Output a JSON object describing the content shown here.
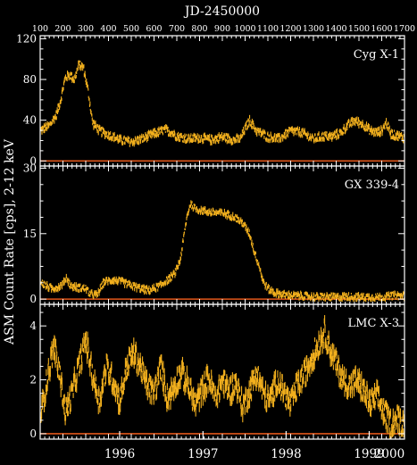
{
  "colors": {
    "background": "#000000",
    "axes": "#ffffff",
    "data": "#f2b01e",
    "zero_line": "#e0561a"
  },
  "chart_data": {
    "type": "scatter",
    "title": "JD-2450000",
    "ylabel": "ASM Count Rate [cps], 2-12 keV",
    "x_top": {
      "label": "JD-2450000",
      "range": [
        100,
        1700
      ],
      "ticks": [
        100,
        200,
        300,
        400,
        500,
        600,
        700,
        800,
        900,
        1000,
        1100,
        1200,
        1300,
        1400,
        1500,
        1600,
        1700
      ]
    },
    "x_bottom": {
      "ticks": [
        {
          "label": "1996",
          "jd": 449
        },
        {
          "label": "1997",
          "jd": 815
        },
        {
          "label": "1998",
          "jd": 1180
        },
        {
          "label": "1999",
          "jd": 1545
        },
        {
          "label": "2000",
          "jd": 1910
        }
      ]
    },
    "panels": [
      {
        "name": "Cyg X-1",
        "ylim": [
          -5,
          123
        ],
        "yticks": [
          0,
          40,
          80,
          120
        ],
        "zero_line": true,
        "profile": [
          [
            100,
            30
          ],
          [
            140,
            35
          ],
          [
            170,
            45
          ],
          [
            190,
            60
          ],
          [
            210,
            82
          ],
          [
            230,
            85
          ],
          [
            250,
            80
          ],
          [
            270,
            95
          ],
          [
            290,
            92
          ],
          [
            310,
            70
          ],
          [
            330,
            38
          ],
          [
            360,
            30
          ],
          [
            400,
            26
          ],
          [
            450,
            21
          ],
          [
            500,
            19
          ],
          [
            550,
            22
          ],
          [
            600,
            27
          ],
          [
            650,
            31
          ],
          [
            680,
            28
          ],
          [
            700,
            25
          ],
          [
            750,
            22
          ],
          [
            800,
            23
          ],
          [
            850,
            21
          ],
          [
            900,
            24
          ],
          [
            950,
            21
          ],
          [
            980,
            22
          ],
          [
            1000,
            32
          ],
          [
            1020,
            40
          ],
          [
            1050,
            30
          ],
          [
            1100,
            24
          ],
          [
            1150,
            22
          ],
          [
            1200,
            30
          ],
          [
            1250,
            28
          ],
          [
            1300,
            22
          ],
          [
            1350,
            25
          ],
          [
            1380,
            24
          ],
          [
            1420,
            28
          ],
          [
            1450,
            35
          ],
          [
            1480,
            40
          ],
          [
            1500,
            38
          ],
          [
            1520,
            36
          ],
          [
            1550,
            30
          ],
          [
            1580,
            28
          ],
          [
            1600,
            30
          ],
          [
            1620,
            38
          ],
          [
            1640,
            27
          ],
          [
            1670,
            25
          ],
          [
            1700,
            23
          ]
        ],
        "noise": 4
      },
      {
        "name": "GX 339-4",
        "ylim": [
          -1.2,
          30.5
        ],
        "yticks": [
          0,
          15,
          30
        ],
        "zero_line": true,
        "profile": [
          [
            100,
            4
          ],
          [
            130,
            3
          ],
          [
            150,
            2.5
          ],
          [
            180,
            2.8
          ],
          [
            200,
            3.5
          ],
          [
            215,
            5
          ],
          [
            235,
            3
          ],
          [
            260,
            2.8
          ],
          [
            300,
            2.5
          ],
          [
            320,
            1.2
          ],
          [
            350,
            1
          ],
          [
            380,
            4
          ],
          [
            420,
            4.5
          ],
          [
            460,
            4
          ],
          [
            500,
            3.2
          ],
          [
            540,
            2.5
          ],
          [
            580,
            2
          ],
          [
            620,
            3
          ],
          [
            660,
            4.5
          ],
          [
            690,
            5.8
          ],
          [
            715,
            9
          ],
          [
            730,
            14
          ],
          [
            745,
            19
          ],
          [
            760,
            22
          ],
          [
            775,
            21
          ],
          [
            800,
            20.5
          ],
          [
            850,
            20
          ],
          [
            900,
            19.8
          ],
          [
            950,
            19
          ],
          [
            990,
            17.5
          ],
          [
            1020,
            15
          ],
          [
            1040,
            11
          ],
          [
            1060,
            8
          ],
          [
            1080,
            4
          ],
          [
            1100,
            2.5
          ],
          [
            1130,
            1.5
          ],
          [
            1180,
            1
          ],
          [
            1250,
            0.8
          ],
          [
            1300,
            0.6
          ],
          [
            1350,
            0.6
          ],
          [
            1400,
            0.5
          ],
          [
            1450,
            0.7
          ],
          [
            1500,
            0.5
          ],
          [
            1550,
            0.6
          ],
          [
            1600,
            0.5
          ],
          [
            1650,
            0.9
          ],
          [
            1700,
            0.8
          ]
        ],
        "noise": 0.8
      },
      {
        "name": "LMC X-3",
        "ylim": [
          -0.2,
          4.8
        ],
        "yticks": [
          0,
          2,
          4
        ],
        "zero_line": true,
        "profile": [
          [
            100,
            0.6
          ],
          [
            130,
            2
          ],
          [
            160,
            3.3
          ],
          [
            190,
            2
          ],
          [
            210,
            0.8
          ],
          [
            240,
            1.5
          ],
          [
            270,
            2.5
          ],
          [
            300,
            3.5
          ],
          [
            330,
            2.2
          ],
          [
            360,
            1.2
          ],
          [
            390,
            2.5
          ],
          [
            420,
            2
          ],
          [
            450,
            1.2
          ],
          [
            480,
            2.5
          ],
          [
            510,
            3
          ],
          [
            540,
            2.5
          ],
          [
            570,
            1.8
          ],
          [
            600,
            1.5
          ],
          [
            630,
            2.5
          ],
          [
            660,
            1.3
          ],
          [
            690,
            1.8
          ],
          [
            720,
            2.3
          ],
          [
            750,
            1.8
          ],
          [
            780,
            1.1
          ],
          [
            810,
            1.6
          ],
          [
            840,
            2.1
          ],
          [
            870,
            1.3
          ],
          [
            900,
            2
          ],
          [
            930,
            1.6
          ],
          [
            960,
            1.9
          ],
          [
            990,
            1
          ],
          [
            1020,
            1.6
          ],
          [
            1050,
            2.3
          ],
          [
            1080,
            1.5
          ],
          [
            1110,
            1.2
          ],
          [
            1140,
            2
          ],
          [
            1170,
            1.6
          ],
          [
            1200,
            1.1
          ],
          [
            1230,
            1.8
          ],
          [
            1260,
            2.2
          ],
          [
            1290,
            2.8
          ],
          [
            1320,
            3.3
          ],
          [
            1350,
            3.8
          ],
          [
            1370,
            3.2
          ],
          [
            1400,
            2.6
          ],
          [
            1430,
            2
          ],
          [
            1460,
            1.8
          ],
          [
            1490,
            2
          ],
          [
            1520,
            1.6
          ],
          [
            1550,
            1.1
          ],
          [
            1580,
            1.4
          ],
          [
            1610,
            0.8
          ],
          [
            1640,
            0.4
          ],
          [
            1670,
            0.6
          ],
          [
            1700,
            0.3
          ]
        ],
        "noise": 0.45
      }
    ]
  }
}
